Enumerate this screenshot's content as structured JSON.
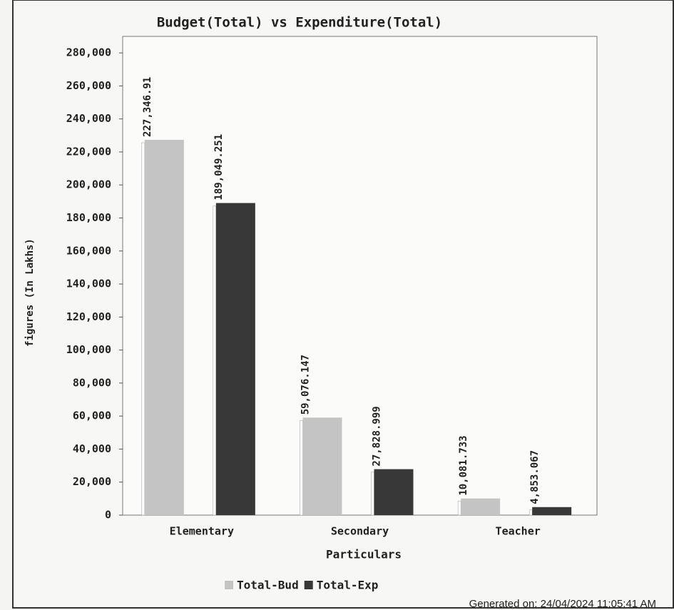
{
  "chart_data": {
    "type": "bar",
    "title": "Budget(Total) vs Expenditure(Total)",
    "x_label": "Particulars",
    "y_label": "figures (In Lakhs)",
    "categories": [
      "Elementary",
      "Secondary",
      "Teacher"
    ],
    "series": [
      {
        "name": "Total-Bud",
        "color": "#c4c4c4",
        "values": [
          227346.91,
          59076.147,
          10081.733
        ],
        "value_labels": [
          "227,346.91",
          "59,076.147",
          "10,081.733"
        ]
      },
      {
        "name": "Total-Exp",
        "color": "#383838",
        "values": [
          189049.251,
          27828.999,
          4853.067
        ],
        "value_labels": [
          "189,049.251",
          "27,828.999",
          "4,853.067"
        ]
      }
    ],
    "ylim": [
      0,
      290000
    ],
    "yticks": [
      0,
      {
        "value": 20000,
        "label": "20,000"
      },
      {
        "value": 40000,
        "label": "40,000"
      },
      {
        "value": 60000,
        "label": "60,000"
      },
      {
        "value": 80000,
        "label": "80,000"
      },
      {
        "value": 100000,
        "label": "100,000"
      },
      {
        "value": 120000,
        "label": "120,000"
      },
      {
        "value": 140000,
        "label": "140,000"
      },
      {
        "value": 160000,
        "label": "160,000"
      },
      {
        "value": 180000,
        "label": "180,000"
      },
      {
        "value": 200000,
        "label": "200,000"
      },
      {
        "value": 220000,
        "label": "220,000"
      },
      {
        "value": 240000,
        "label": "240,000"
      },
      {
        "value": 260000,
        "label": "260,000"
      },
      {
        "value": 280000,
        "label": "280,000"
      }
    ],
    "legend": "bottom",
    "footer": "Generated on: 24/04/2024 11:05:41 AM"
  }
}
